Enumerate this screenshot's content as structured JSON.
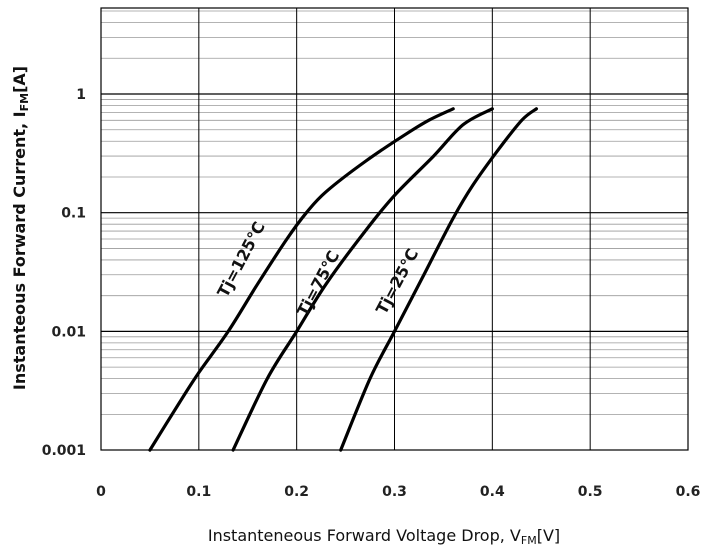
{
  "chart_data": {
    "type": "line",
    "title": "",
    "xlabel": {
      "main": "Instanteneous Forward Voltage Drop, V",
      "sub": "FM",
      "unit": "[V]"
    },
    "ylabel": {
      "main": "Instanteous Forward Current, I",
      "sub": "FM",
      "unit": "[A]"
    },
    "xlim": [
      0,
      0.6
    ],
    "ylim": [
      0.001,
      5
    ],
    "yscale": "log",
    "grid": true,
    "x_ticks": [
      "0",
      "0.1",
      "0.2",
      "0.3",
      "0.4",
      "0.5",
      "0.6"
    ],
    "y_ticks": [
      "0.001",
      "0.01",
      "0.1",
      "1"
    ],
    "series": [
      {
        "name": "Tj=125℃",
        "x": [
          0.05,
          0.08,
          0.1,
          0.13,
          0.16,
          0.19,
          0.21,
          0.23,
          0.27,
          0.31,
          0.335,
          0.36
        ],
        "y": [
          0.001,
          0.0025,
          0.0045,
          0.01,
          0.025,
          0.06,
          0.1,
          0.15,
          0.27,
          0.45,
          0.6,
          0.75
        ]
      },
      {
        "name": "Tj=75℃",
        "x": [
          0.135,
          0.17,
          0.2,
          0.23,
          0.27,
          0.3,
          0.34,
          0.37,
          0.4
        ],
        "y": [
          0.001,
          0.004,
          0.01,
          0.025,
          0.07,
          0.14,
          0.3,
          0.55,
          0.75
        ]
      },
      {
        "name": "Tj=25℃",
        "x": [
          0.245,
          0.275,
          0.3,
          0.33,
          0.36,
          0.38,
          0.405,
          0.43,
          0.445
        ],
        "y": [
          0.001,
          0.004,
          0.01,
          0.03,
          0.09,
          0.17,
          0.33,
          0.6,
          0.75
        ]
      }
    ],
    "curve_labels": [
      "Tj=125℃",
      "Tj=75℃",
      "Tj=25℃"
    ]
  }
}
